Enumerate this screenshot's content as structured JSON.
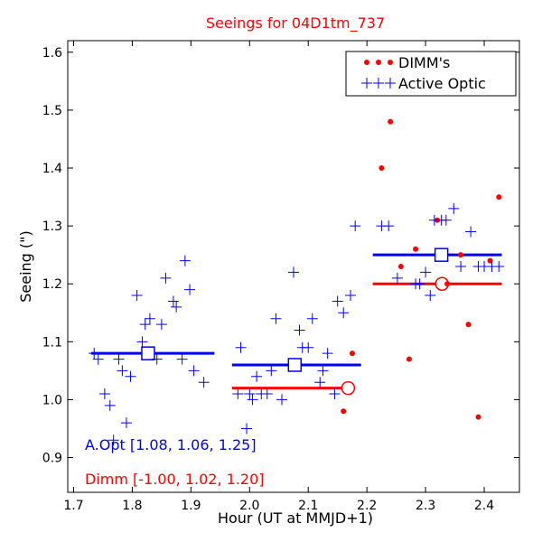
{
  "chart_data": {
    "type": "scatter",
    "title": "Seeings for 04D1tm_737",
    "xlabel": "Hour (UT at MMJD+1)",
    "ylabel": "Seeing (\")",
    "xlim": [
      1.69,
      2.46
    ],
    "ylim": [
      0.84,
      1.62
    ],
    "xticks": [
      1.7,
      1.8,
      1.9,
      2.0,
      2.1,
      2.2,
      2.3,
      2.4
    ],
    "xtick_labels": [
      "1.7",
      "1.8",
      "1.9",
      "2.0",
      "2.1",
      "2.2",
      "2.3",
      "2.4"
    ],
    "yticks": [
      0.9,
      1.0,
      1.1,
      1.2,
      1.3,
      1.4,
      1.5,
      1.6
    ],
    "ytick_labels": [
      "0.9",
      "1.0",
      "1.1",
      "1.2",
      "1.3",
      "1.4",
      "1.5",
      "1.6"
    ],
    "legend_position": "top-right",
    "series": [
      {
        "name": "DIMM's",
        "marker": "dot",
        "color": "#ff0000",
        "x": [
          2.16,
          2.175,
          2.225,
          2.24,
          2.258,
          2.272,
          2.283,
          2.32,
          2.337,
          2.36,
          2.373,
          2.39,
          2.41,
          2.425
        ],
        "y": [
          0.98,
          1.08,
          1.4,
          1.48,
          1.23,
          1.07,
          1.26,
          1.31,
          1.2,
          1.25,
          1.13,
          0.97,
          1.24,
          1.35
        ]
      },
      {
        "name": "Active Optic",
        "marker": "plus",
        "color": "#0000ff",
        "x": [
          1.735,
          1.742,
          1.753,
          1.762,
          1.768,
          1.777,
          1.783,
          1.79,
          1.797,
          1.808,
          1.817,
          1.822,
          1.83,
          1.842,
          1.85,
          1.857,
          1.87,
          1.875,
          1.885,
          1.89,
          1.898,
          1.905,
          1.922,
          1.98,
          1.985,
          1.995,
          2.0,
          2.005,
          2.012,
          2.02,
          2.03,
          2.037,
          2.045,
          2.055,
          2.075,
          2.085,
          2.09,
          2.1,
          2.107,
          2.12,
          2.125,
          2.133,
          2.145,
          2.15,
          2.16,
          2.172,
          2.18,
          2.225,
          2.237,
          2.252,
          2.283,
          2.29,
          2.3,
          2.308,
          2.315,
          2.327,
          2.335,
          2.348,
          2.36,
          2.377,
          2.39,
          2.4,
          2.413,
          2.425
        ],
        "y": [
          1.08,
          1.07,
          1.01,
          0.99,
          0.93,
          1.07,
          1.05,
          0.96,
          1.04,
          1.18,
          1.1,
          1.13,
          1.14,
          1.07,
          1.13,
          1.21,
          1.17,
          1.16,
          1.07,
          1.24,
          1.19,
          1.05,
          1.03,
          1.01,
          1.09,
          0.95,
          1.01,
          1.0,
          1.04,
          1.01,
          1.01,
          1.05,
          1.14,
          1.0,
          1.22,
          1.12,
          1.09,
          1.09,
          1.14,
          1.03,
          1.05,
          1.08,
          1.01,
          1.17,
          1.15,
          1.18,
          1.3,
          1.3,
          1.3,
          1.21,
          1.2,
          1.2,
          1.22,
          1.18,
          1.31,
          1.31,
          1.31,
          1.33,
          1.23,
          1.29,
          1.23,
          1.23,
          1.23,
          1.23
        ]
      }
    ],
    "means": [
      {
        "name": "Active Optic mean",
        "color": "#0000ff",
        "marker": "square",
        "x_start": 1.73,
        "x_end": 1.94,
        "x": 1.827,
        "y": 1.08
      },
      {
        "name": "Active Optic mean",
        "color": "#0000ff",
        "marker": "square",
        "x_start": 1.97,
        "x_end": 2.19,
        "x": 2.077,
        "y": 1.06
      },
      {
        "name": "Active Optic mean",
        "color": "#0000ff",
        "marker": "square",
        "x_start": 2.21,
        "x_end": 2.43,
        "x": 2.327,
        "y": 1.25
      },
      {
        "name": "DIMM mean",
        "color": "#ff0000",
        "marker": "circle",
        "x_start": 1.97,
        "x_end": 2.17,
        "x": 2.168,
        "y": 1.02
      },
      {
        "name": "DIMM mean",
        "color": "#ff0000",
        "marker": "circle",
        "x_start": 2.21,
        "x_end": 2.43,
        "x": 2.328,
        "y": 1.2
      }
    ],
    "annotations": [
      {
        "text": "A.Opt [1.08, 1.06, 1.25]",
        "color": "#0000ff"
      },
      {
        "text": "Dimm [-1.00, 1.02, 1.20]",
        "color": "#ff0000"
      }
    ]
  }
}
